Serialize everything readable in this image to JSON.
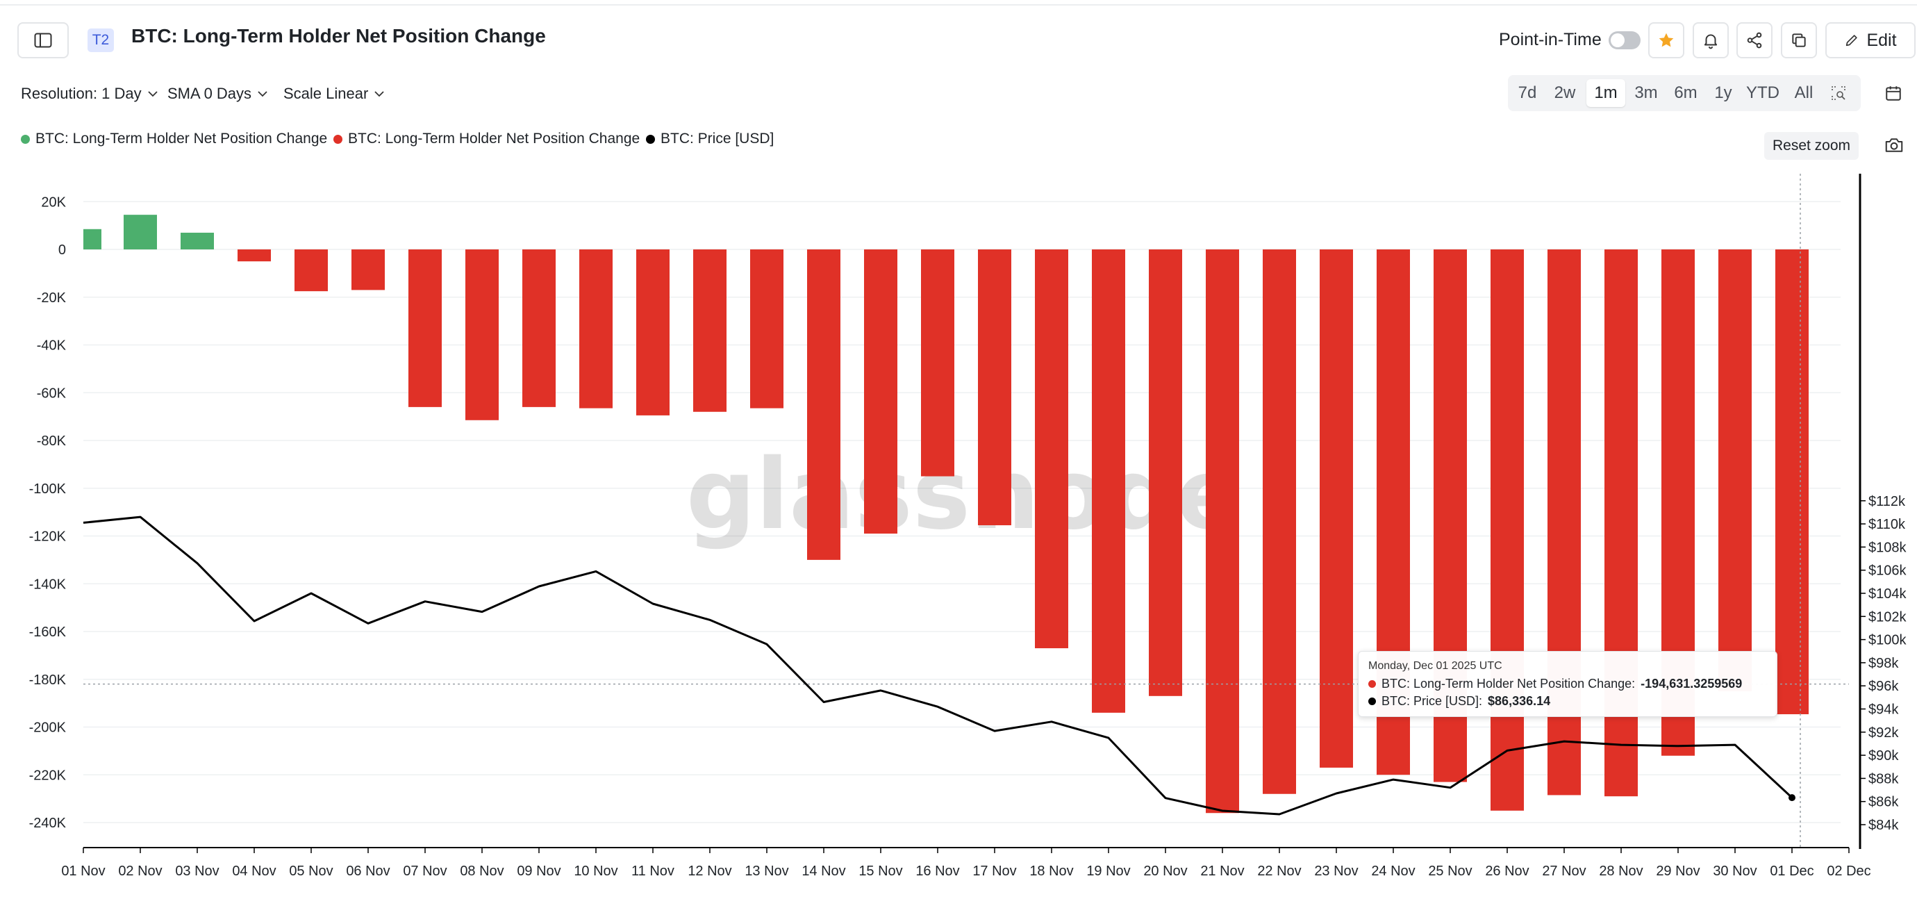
{
  "header": {
    "badge": "T2",
    "title": "BTC: Long-Term Holder Net Position Change",
    "point_in_time_label": "Point-in-Time",
    "edit_label": "Edit"
  },
  "controls": {
    "resolution": "Resolution: 1 Day",
    "sma": "SMA 0 Days",
    "scale": "Scale Linear"
  },
  "ranges": [
    "7d",
    "2w",
    "1m",
    "3m",
    "6m",
    "1y",
    "YTD",
    "All"
  ],
  "active_range": "1m",
  "legend": [
    {
      "label": "BTC: Long-Term Holder Net Position Change",
      "color": "#4caf6d"
    },
    {
      "label": "BTC: Long-Term Holder Net Position Change",
      "color": "#e03127"
    },
    {
      "label": "BTC: Price [USD]",
      "color": "#000000"
    }
  ],
  "reset_zoom": "Reset zoom",
  "watermark": "glassnode",
  "tooltip": {
    "date": "Monday, Dec 01 2025 UTC",
    "row1_label": "BTC: Long-Term Holder Net Position Change: ",
    "row1_value": "-194,631.3259569",
    "row2_label": "BTC: Price [USD]: ",
    "row2_value": "$86,336.14"
  },
  "chart_data": {
    "type": "bar",
    "categories": [
      "01 Nov",
      "02 Nov",
      "03 Nov",
      "04 Nov",
      "05 Nov",
      "06 Nov",
      "07 Nov",
      "08 Nov",
      "09 Nov",
      "10 Nov",
      "11 Nov",
      "12 Nov",
      "13 Nov",
      "14 Nov",
      "15 Nov",
      "16 Nov",
      "17 Nov",
      "18 Nov",
      "19 Nov",
      "20 Nov",
      "21 Nov",
      "22 Nov",
      "23 Nov",
      "24 Nov",
      "25 Nov",
      "26 Nov",
      "27 Nov",
      "28 Nov",
      "29 Nov",
      "30 Nov",
      "01 Dec"
    ],
    "x_tick_labels": [
      "01 Nov",
      "02 Nov",
      "03 Nov",
      "04 Nov",
      "05 Nov",
      "06 Nov",
      "07 Nov",
      "08 Nov",
      "09 Nov",
      "10 Nov",
      "11 Nov",
      "12 Nov",
      "13 Nov",
      "14 Nov",
      "15 Nov",
      "16 Nov",
      "17 Nov",
      "18 Nov",
      "19 Nov",
      "20 Nov",
      "21 Nov",
      "22 Nov",
      "23 Nov",
      "24 Nov",
      "25 Nov",
      "26 Nov",
      "27 Nov",
      "28 Nov",
      "29 Nov",
      "30 Nov",
      "01 Dec",
      "02 Dec"
    ],
    "series": [
      {
        "name": "BTC: Long-Term Holder Net Position Change",
        "axis": "left",
        "positive_color": "#4caf6d",
        "negative_color": "#e03127",
        "values": [
          8500,
          14500,
          7000,
          -5000,
          -17500,
          -17000,
          -66000,
          -71500,
          -66000,
          -66500,
          -69500,
          -68000,
          -66500,
          -130000,
          -119000,
          -95000,
          -115500,
          -167000,
          -194000,
          -187000,
          -236000,
          -228000,
          -217000,
          -220000,
          -223000,
          -235000,
          -228500,
          -229000,
          -212000,
          -185000,
          -194631.33
        ]
      },
      {
        "name": "BTC: Price [USD]",
        "axis": "right",
        "type": "line",
        "color": "#000000",
        "values": [
          110100,
          110600,
          106600,
          101600,
          104000,
          101400,
          103300,
          102400,
          104600,
          105900,
          103100,
          101700,
          99600,
          94600,
          95600,
          94200,
          92100,
          92900,
          91500,
          86300,
          85200,
          84900,
          86700,
          87900,
          87200,
          90400,
          91200,
          90900,
          90800,
          90900,
          86336.14
        ]
      }
    ],
    "y_left": {
      "ticks": [
        "20K",
        "0",
        "-20K",
        "-40K",
        "-60K",
        "-80K",
        "-100K",
        "-120K",
        "-140K",
        "-160K",
        "-180K",
        "-200K",
        "-220K",
        "-240K"
      ],
      "range": [
        -250000,
        20000
      ]
    },
    "y_right": {
      "ticks": [
        "$112k",
        "$110k",
        "$108k",
        "$106k",
        "$104k",
        "$102k",
        "$100k",
        "$98k",
        "$96k",
        "$94k",
        "$92k",
        "$90k",
        "$88k",
        "$86k",
        "$84k"
      ],
      "range": [
        83000,
        112000
      ]
    },
    "crosshair_value": -182000,
    "grid": true,
    "legend_position": "top-left"
  }
}
